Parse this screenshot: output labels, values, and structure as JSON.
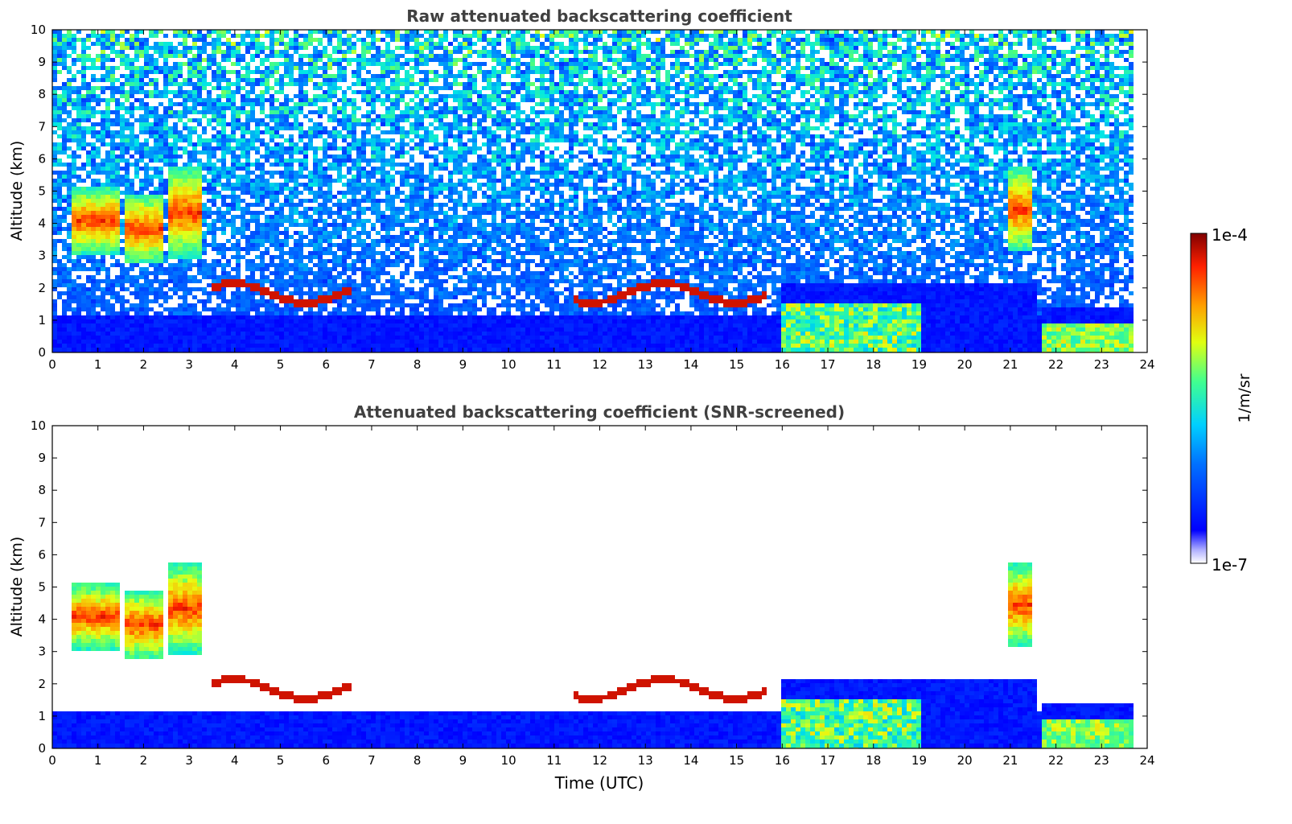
{
  "figure": {
    "panels": [
      {
        "title": "Raw attenuated backscattering coefficient",
        "ylabel": "Altitude (km)",
        "xlabel": ""
      },
      {
        "title": "Attenuated backscattering coefficient (SNR-screened)",
        "ylabel": "Altitude (km)",
        "xlabel": "Time (UTC)"
      }
    ],
    "colorbar": {
      "label": "1/m/sr",
      "max_label": "1e-4",
      "min_label": "1e-7"
    }
  },
  "chart_data": [
    {
      "type": "heatmap",
      "title": "Raw attenuated backscattering coefficient",
      "xlabel": "",
      "ylabel": "Altitude (km)",
      "xlim": [
        0,
        24
      ],
      "ylim": [
        0,
        10
      ],
      "x_ticks": [
        "0",
        "1",
        "2",
        "3",
        "4",
        "5",
        "6",
        "7",
        "8",
        "9",
        "10",
        "11",
        "12",
        "13",
        "14",
        "15",
        "16",
        "17",
        "18",
        "19",
        "20",
        "21",
        "22",
        "23",
        "24"
      ],
      "y_ticks": [
        "0",
        "1",
        "2",
        "3",
        "4",
        "5",
        "6",
        "7",
        "8",
        "9",
        "10"
      ],
      "colorscale": "jet (log)",
      "color_range": [
        "1e-7",
        "1e-4"
      ],
      "data_end_time": 23.65,
      "gap_times": [
        21.55
      ],
      "features": [
        {
          "kind": "cloud",
          "t0": 0.4,
          "t1": 1.4,
          "base": 3.1,
          "top": 5.2
        },
        {
          "kind": "cloud",
          "t0": 1.5,
          "t1": 2.4,
          "base": 2.8,
          "top": 5.0
        },
        {
          "kind": "cloud",
          "t0": 2.5,
          "t1": 3.2,
          "base": 3.0,
          "top": 5.8
        },
        {
          "kind": "layer",
          "t0": 3.4,
          "t1": 6.5,
          "alt": 1.9
        },
        {
          "kind": "layer",
          "t0": 11.4,
          "t1": 15.6,
          "alt": 1.9
        },
        {
          "kind": "boundary_layer",
          "t0": 15.9,
          "t1": 21.5,
          "top": 2.2
        },
        {
          "kind": "boundary_layer",
          "t0": 21.6,
          "t1": 23.65,
          "top": 1.4
        },
        {
          "kind": "cloud",
          "t0": 20.9,
          "t1": 21.4,
          "base": 3.2,
          "top": 5.8
        }
      ]
    },
    {
      "type": "heatmap",
      "title": "Attenuated backscattering coefficient (SNR-screened)",
      "xlabel": "Time (UTC)",
      "ylabel": "Altitude (km)",
      "xlim": [
        0,
        24
      ],
      "ylim": [
        0,
        10
      ],
      "x_ticks": [
        "0",
        "1",
        "2",
        "3",
        "4",
        "5",
        "6",
        "7",
        "8",
        "9",
        "10",
        "11",
        "12",
        "13",
        "14",
        "15",
        "16",
        "17",
        "18",
        "19",
        "20",
        "21",
        "22",
        "23",
        "24"
      ],
      "y_ticks": [
        "0",
        "1",
        "2",
        "3",
        "4",
        "5",
        "6",
        "7",
        "8",
        "9",
        "10"
      ],
      "colorscale": "jet (log)",
      "color_range": [
        "1e-7",
        "1e-4"
      ],
      "data_end_time": 23.65,
      "gap_times": [
        21.55
      ],
      "screened": true
    }
  ],
  "colors": {
    "low": "#0000ff",
    "high": "#800000",
    "text": "#404040"
  }
}
